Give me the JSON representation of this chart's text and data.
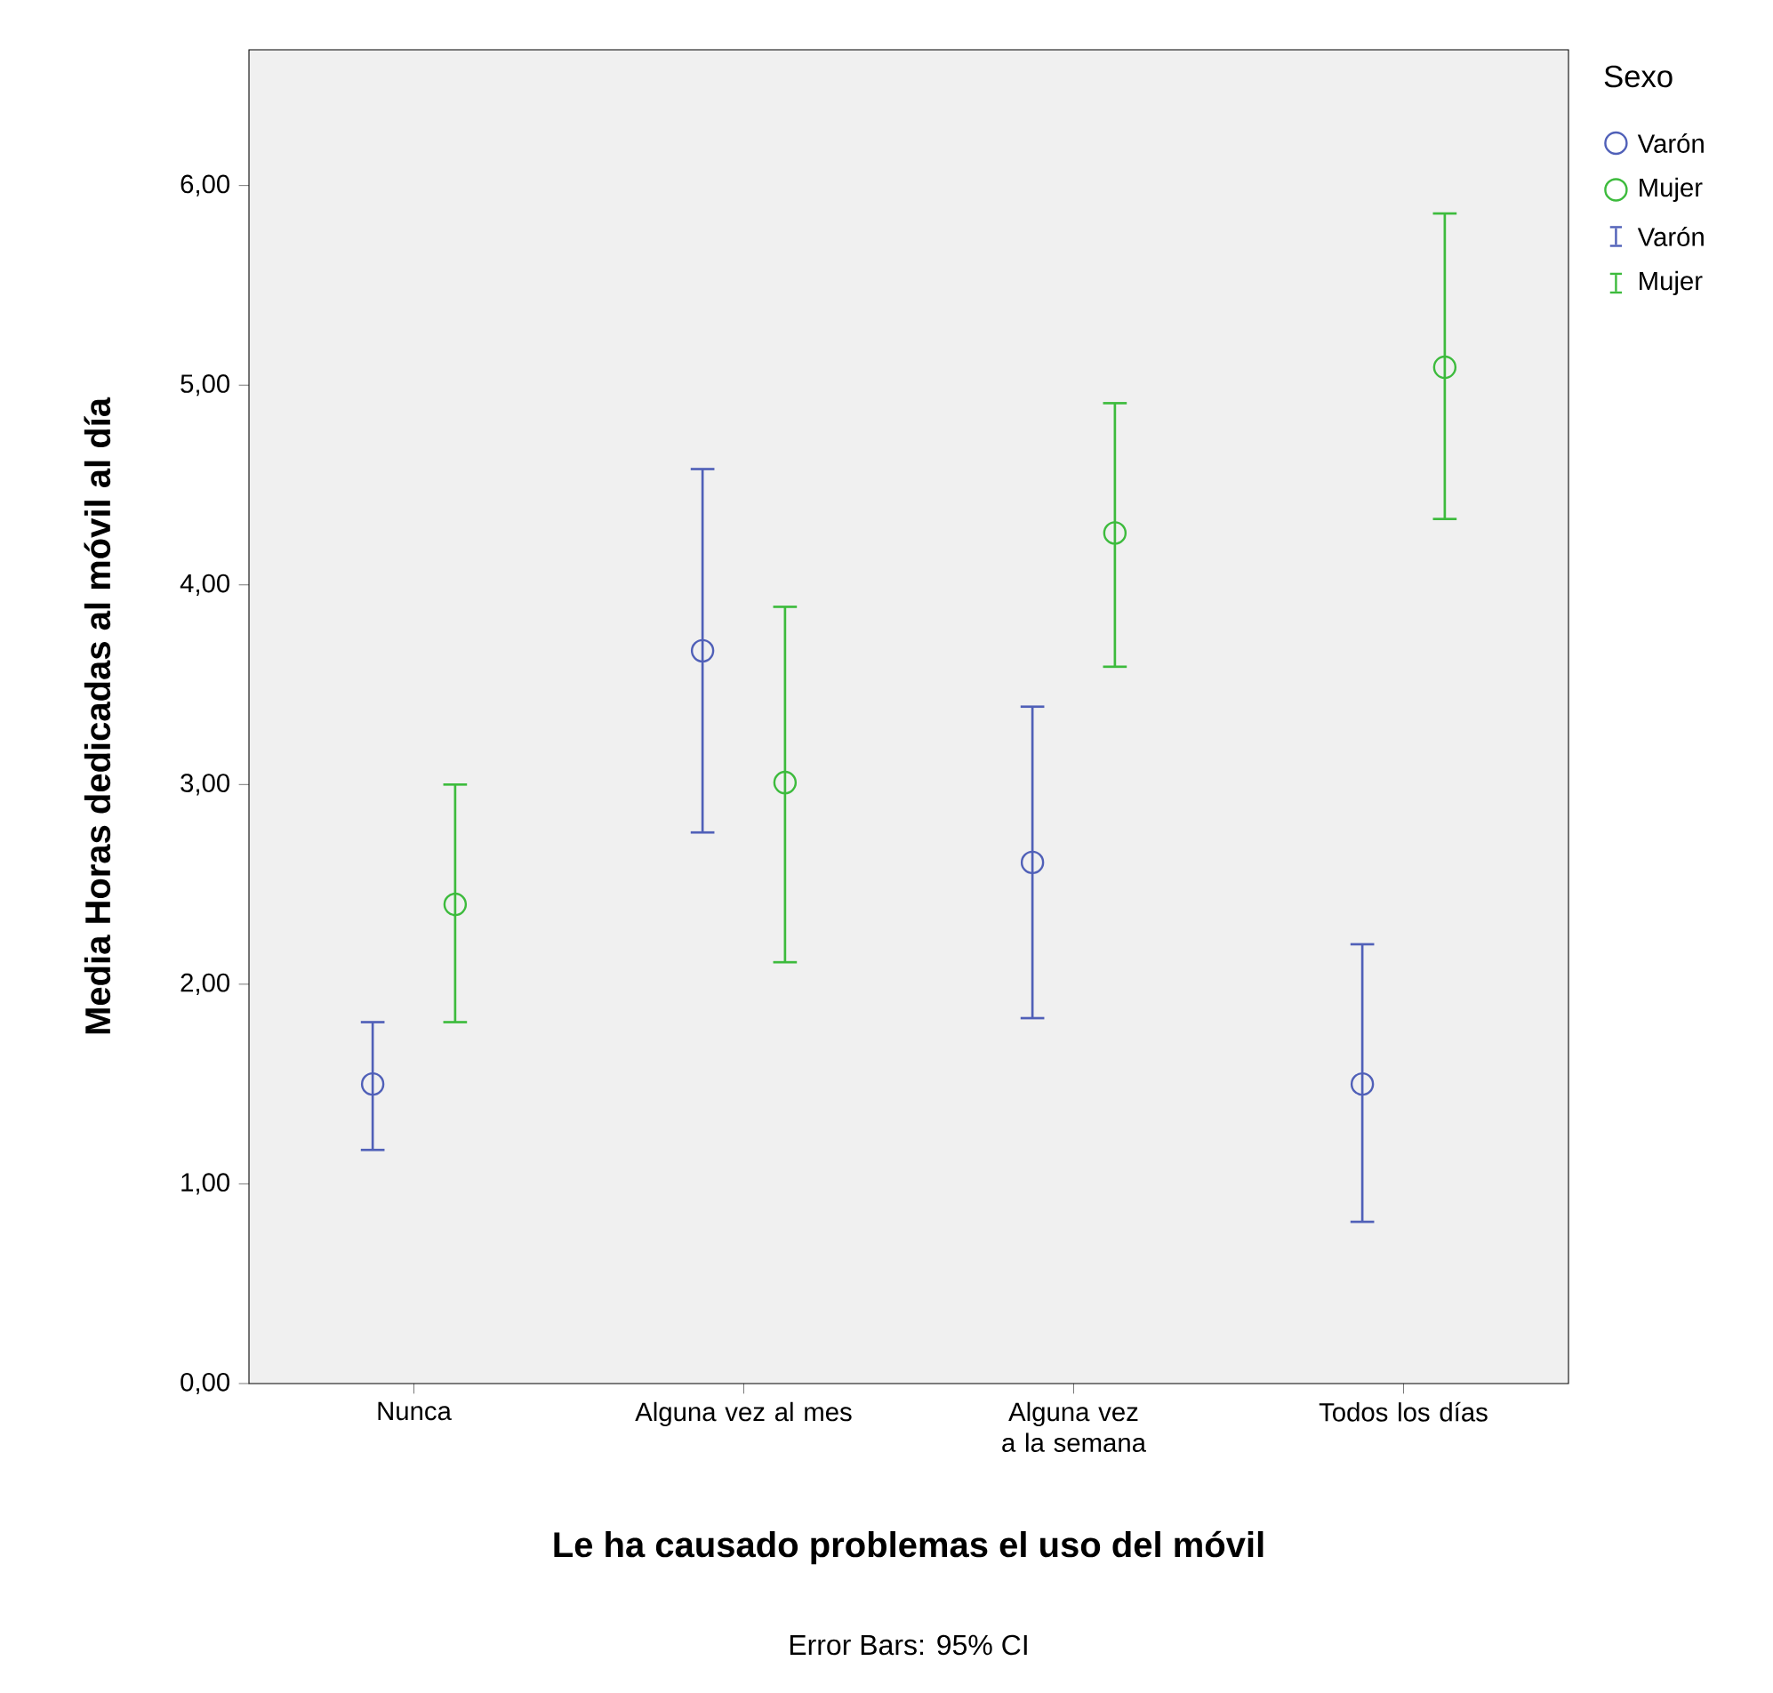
{
  "chart_data": {
    "type": "scatter",
    "xlabel": "Le ha causado problemas el uso del móvil",
    "ylabel": "Media Horas dedicadas al móvil al día",
    "legend_title": "Sexo",
    "legend": "right",
    "marker": "circle",
    "annotations": [
      "Error Bars: 95% CI"
    ],
    "categories": [
      "Nunca",
      "Alguna vez al mes",
      "Alguna vez a la semana",
      "Todos los días"
    ],
    "ylim": [
      0,
      6.68
    ],
    "yticks": [
      {
        "value": 0,
        "label": "0,00"
      },
      {
        "value": 1,
        "label": "1,00"
      },
      {
        "value": 2,
        "label": "2,00"
      },
      {
        "value": 3,
        "label": "3,00"
      },
      {
        "value": 4,
        "label": "4,00"
      },
      {
        "value": 5,
        "label": "5,00"
      },
      {
        "value": 6,
        "label": "6,00"
      }
    ],
    "series": [
      {
        "name": "Varón",
        "color": "#5060b8",
        "values": [
          1.5,
          3.67,
          2.61,
          1.5
        ],
        "errors": [
          [
            1.17,
            1.81
          ],
          [
            2.76,
            4.58
          ],
          [
            1.83,
            3.39
          ],
          [
            0.81,
            2.2
          ]
        ]
      },
      {
        "name": "Mujer",
        "color": "#3dbb3d",
        "values": [
          2.4,
          3.01,
          4.26,
          5.09
        ],
        "errors": [
          [
            1.81,
            3.0
          ],
          [
            2.11,
            3.89
          ],
          [
            3.59,
            4.91
          ],
          [
            4.33,
            5.86
          ]
        ]
      }
    ]
  }
}
